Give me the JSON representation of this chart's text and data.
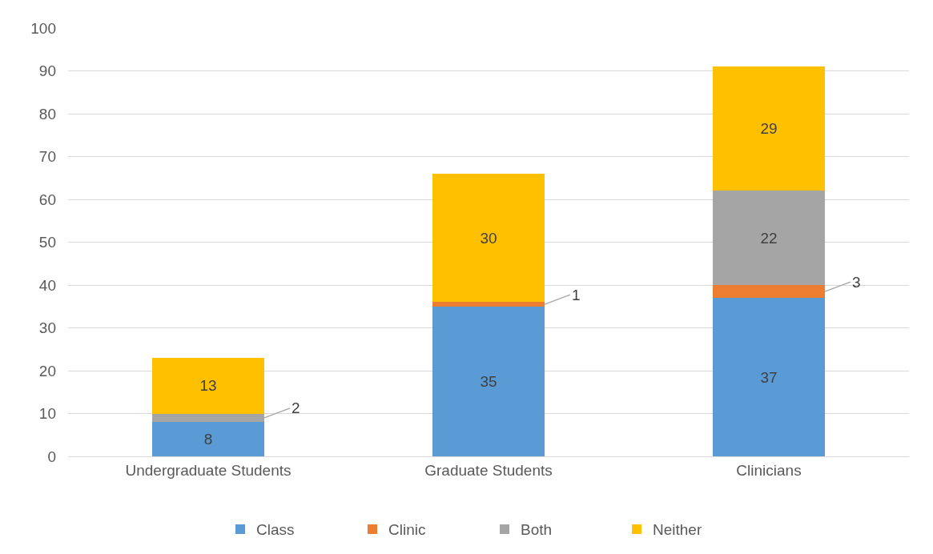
{
  "chart_data": {
    "type": "bar",
    "stacked": true,
    "categories": [
      "Undergraduate Students",
      "Graduate Students",
      "Clinicians"
    ],
    "series": [
      {
        "name": "Class",
        "color": "#5b9bd5",
        "values": [
          8,
          35,
          37
        ],
        "value_labels": [
          "8",
          "35",
          "37"
        ]
      },
      {
        "name": "Clinic",
        "color": "#ed7d31",
        "values": [
          0,
          1,
          3
        ],
        "value_labels": [
          null,
          "1",
          "3"
        ]
      },
      {
        "name": "Both",
        "color": "#a5a5a5",
        "values": [
          2,
          0,
          22
        ],
        "value_labels": [
          "2",
          null,
          "22"
        ]
      },
      {
        "name": "Neither",
        "color": "#ffc000",
        "values": [
          13,
          30,
          29
        ],
        "value_labels": [
          "13",
          "30",
          "29"
        ]
      }
    ],
    "ylim": [
      0,
      100
    ],
    "yticks": [
      0,
      10,
      20,
      30,
      40,
      50,
      60,
      70,
      80,
      90,
      100
    ],
    "grid": "y",
    "legend": "bottom"
  }
}
